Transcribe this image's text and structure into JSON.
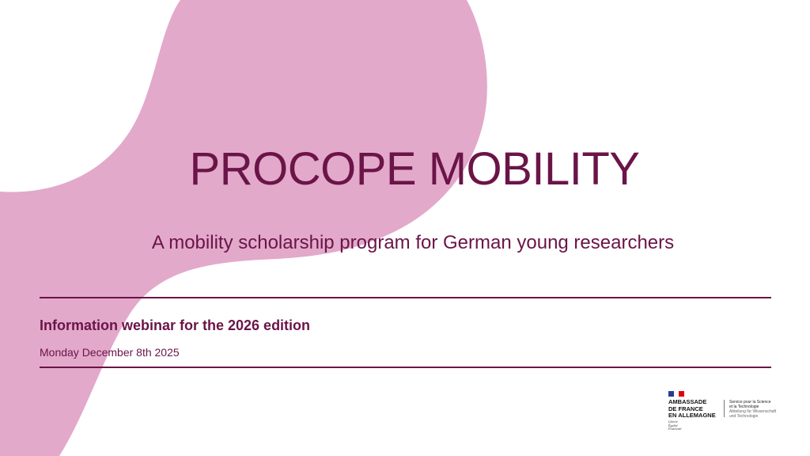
{
  "slide": {
    "title": "PROCOPE MOBILITY",
    "subtitle": "A mobility scholarship program for German young researchers",
    "webinar": "Information webinar for the 2026 edition",
    "date": "Monday December 8th 2025"
  },
  "logo": {
    "line1": "AMBASSADE",
    "line2": "DE FRANCE",
    "line3": "EN ALLEMAGNE",
    "motto1": "Liberté",
    "motto2": "Égalité",
    "motto3": "Fraternité",
    "service1": "Service pour la Science",
    "service2": "et la Technologie",
    "service3": "Abteilung für Wissenschaft",
    "service4": "und Technologie"
  },
  "colors": {
    "accent": "#6b1447",
    "blob": "#e2a9cb",
    "flag_blue": "#2b3a8f",
    "flag_red": "#e1000f"
  }
}
